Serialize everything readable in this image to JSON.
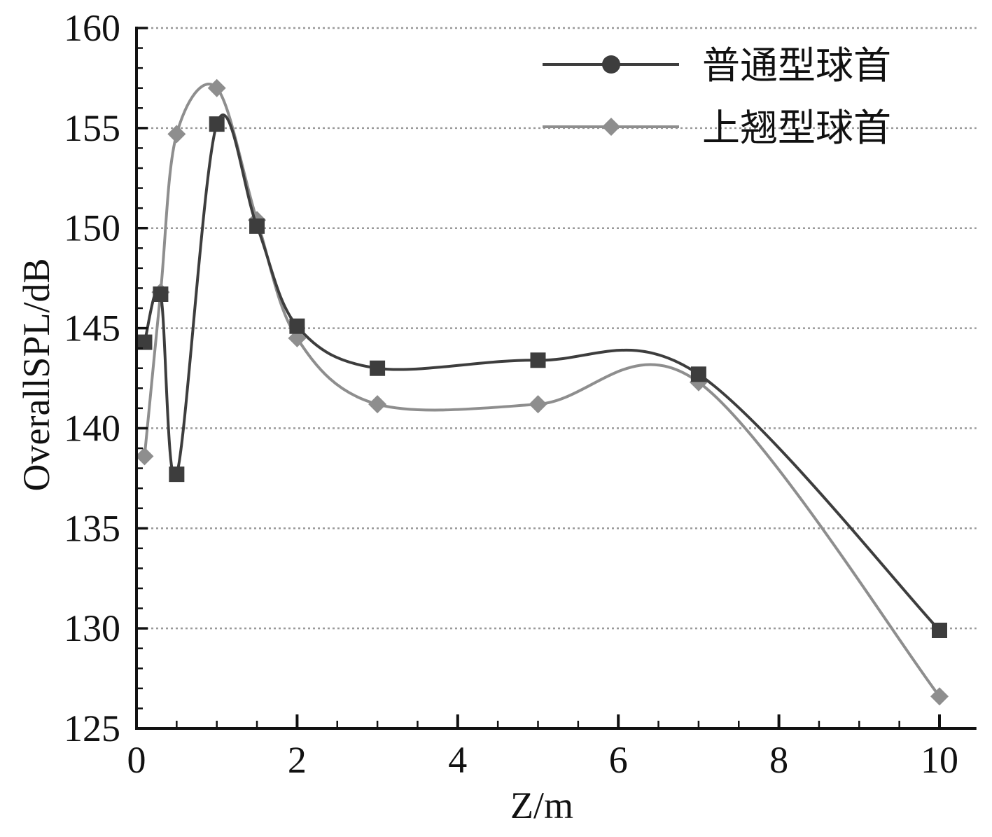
{
  "chart_data": {
    "type": "line",
    "title": "",
    "xlabel": "Z/m",
    "ylabel": "OverallSPL/dB",
    "xlim": [
      0,
      10.46
    ],
    "ylim": [
      125,
      160
    ],
    "x_ticks": [
      0,
      2,
      4,
      6,
      8,
      10
    ],
    "x_tick_labels": [
      "0",
      "2",
      "4",
      "6",
      "8",
      "10"
    ],
    "x_minor_step": 0.5,
    "y_ticks": [
      125,
      130,
      135,
      140,
      145,
      150,
      155,
      160
    ],
    "y_tick_labels": [
      "125",
      "130",
      "135",
      "140",
      "145",
      "150",
      "155",
      "160"
    ],
    "y_minor_step": 1,
    "grid": true,
    "grid_style": "dotted horizontal at major y ticks",
    "legend_position": "top-right",
    "axis_color": "#111111",
    "grid_color": "#9a9a9a",
    "series": [
      {
        "name": "普通型球首",
        "color": "#3d3d3d",
        "marker": "square",
        "legend_marker": "circle",
        "x": [
          0.1,
          0.3,
          0.5,
          1,
          1.5,
          2,
          3,
          5,
          7,
          10
        ],
        "y": [
          144.3,
          146.7,
          137.7,
          155.2,
          150.1,
          145.1,
          143.0,
          143.4,
          142.7,
          129.9
        ]
      },
      {
        "name": "上翘型球首",
        "color": "#8e8e8e",
        "marker": "diamond",
        "legend_marker": "diamond",
        "x": [
          0.1,
          0.3,
          0.5,
          1,
          1.5,
          2,
          3,
          5,
          7,
          10
        ],
        "y": [
          138.6,
          146.8,
          154.7,
          157.0,
          150.4,
          144.5,
          141.2,
          141.2,
          142.3,
          126.6
        ]
      }
    ]
  }
}
